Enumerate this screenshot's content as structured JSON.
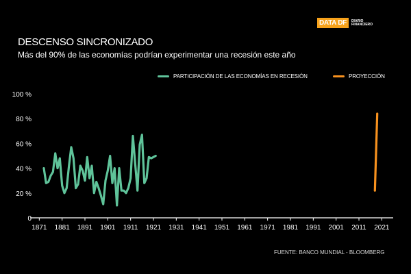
{
  "brand": {
    "logo_main": "DATA DF",
    "logo_sub_line1": "DIARIO",
    "logo_sub_line2": "FINANCIERO",
    "accent": "#f7a21b"
  },
  "header": {
    "title": "DESCENSO SINCRONIZADO",
    "subtitle": "Más del 90% de las economías podrían experimentar una recesión este año"
  },
  "footer": {
    "source": "FUENTE: BANCO MUNDIAL - BLOOMBERG"
  },
  "chart_data": {
    "type": "line",
    "title": "DESCENSO SINCRONIZADO",
    "xlabel": "",
    "ylabel": "",
    "xlim": [
      1867,
      2026
    ],
    "ylim": [
      0,
      100
    ],
    "grid": false,
    "legend_position": "top-right",
    "x_ticks": [
      1871,
      1881,
      1891,
      1901,
      1911,
      1921,
      1931,
      1941,
      1951,
      1961,
      1971,
      1981,
      1991,
      2001,
      2011,
      2021
    ],
    "y_ticks": [
      0,
      20,
      40,
      60,
      80,
      100
    ],
    "y_tick_labels": [
      "0",
      "20 %",
      "40 %",
      "60 %",
      "80 %",
      "100 %"
    ],
    "series": [
      {
        "name": "PARTICIPACIÓN DE LAS ECONOMÍAS EN RECESIÓN",
        "color": "#5fc39a",
        "x": [
          1873,
          1874,
          1875,
          1876,
          1877,
          1878,
          1879,
          1880,
          1881,
          1882,
          1883,
          1884,
          1885,
          1886,
          1887,
          1888,
          1889,
          1890,
          1891,
          1892,
          1893,
          1894,
          1895,
          1896,
          1897,
          1898,
          1899,
          1900,
          1901,
          1902,
          1903,
          1904,
          1905,
          1906,
          1907,
          1908,
          1909,
          1910,
          1911,
          1912,
          1913,
          1914,
          1915,
          1916,
          1917,
          1918,
          1919,
          1920,
          1921,
          1922
        ],
        "values": [
          40,
          28,
          29,
          34,
          37,
          52,
          40,
          48,
          26,
          20,
          24,
          42,
          57,
          48,
          24,
          27,
          42,
          38,
          30,
          49,
          32,
          42,
          20,
          29,
          24,
          18,
          11,
          30,
          38,
          50,
          28,
          40,
          10,
          40,
          22,
          22,
          20,
          24,
          32,
          66,
          44,
          22,
          59,
          67,
          28,
          32,
          49,
          48,
          49,
          50
        ],
        "style": "solid"
      },
      {
        "name": "PROYECCIÓN",
        "color": "#f7911e",
        "x": [
          2018,
          2019
        ],
        "values": [
          22,
          84
        ],
        "style": "solid"
      }
    ]
  }
}
